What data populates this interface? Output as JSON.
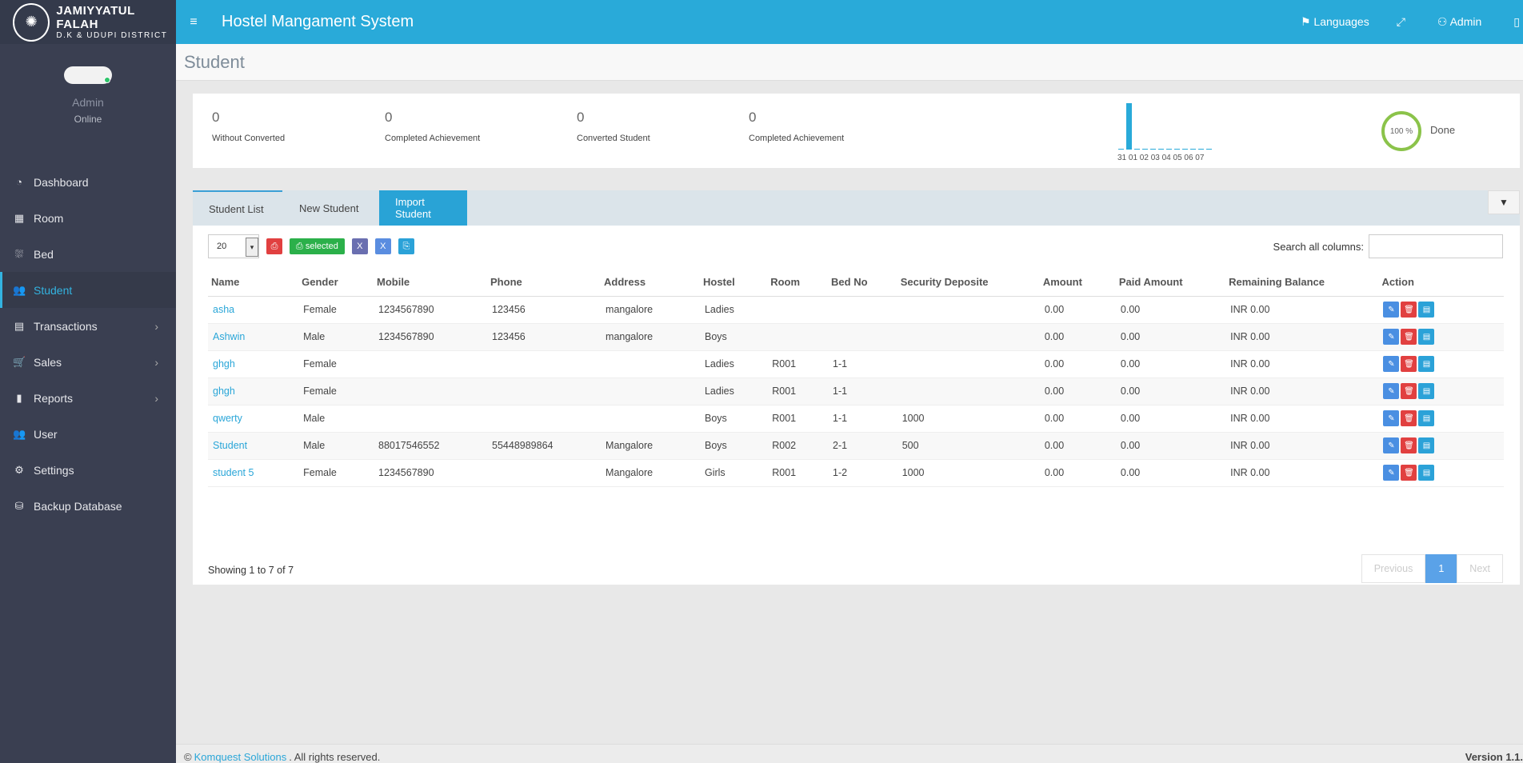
{
  "brand": {
    "line1": "JAMIYYATUL FALAH",
    "line2": "D.K & UDUPI DISTRICT"
  },
  "user": {
    "name": "Admin",
    "status": "Online"
  },
  "menu": [
    {
      "label": "Dashboard",
      "icon": "dashboard-icon",
      "glyph": "◔",
      "chevron": false
    },
    {
      "label": "Room",
      "icon": "room-icon",
      "glyph": "▦",
      "chevron": false
    },
    {
      "label": "Bed",
      "icon": "bed-icon",
      "glyph": "⛆",
      "chevron": false
    },
    {
      "label": "Student",
      "icon": "users-icon",
      "glyph": "👥",
      "chevron": false,
      "active": true
    },
    {
      "label": "Transactions",
      "icon": "book-icon",
      "glyph": "▤",
      "chevron": true
    },
    {
      "label": "Sales",
      "icon": "cart-icon",
      "glyph": "🛒",
      "chevron": true
    },
    {
      "label": "Reports",
      "icon": "bar-chart-icon",
      "glyph": "▮",
      "chevron": true
    },
    {
      "label": "User",
      "icon": "users-icon",
      "glyph": "👥",
      "chevron": false
    },
    {
      "label": "Settings",
      "icon": "gears-icon",
      "glyph": "⚙",
      "chevron": false
    },
    {
      "label": "Backup Database",
      "icon": "database-icon",
      "glyph": "⛁",
      "chevron": false
    }
  ],
  "header": {
    "title": "Hostel Mangament System",
    "languages": "Languages",
    "admin": "Admin"
  },
  "page": {
    "title": "Student"
  },
  "stats": [
    {
      "value": "0",
      "label": "Without Converted"
    },
    {
      "value": "0",
      "label": "Completed Achievement"
    },
    {
      "value": "0",
      "label": "Converted Student"
    },
    {
      "value": "0",
      "label": "Completed Achievement"
    }
  ],
  "sparkline": {
    "labels": "31 01 02 03 04 05 06 07",
    "values": [
      0,
      1,
      0,
      0,
      0,
      0,
      0,
      0,
      0,
      0,
      0,
      0
    ],
    "color": "#29aad9"
  },
  "progress": {
    "percent": 100,
    "label": "100 %",
    "status": "Done",
    "color": "#8bc34a"
  },
  "tabs": {
    "list": "Student List",
    "new": "New Student",
    "import": "Import Student"
  },
  "toolbar": {
    "page_size": "20",
    "selected": "selected"
  },
  "search": {
    "label": "Search all columns:",
    "placeholder": ""
  },
  "table": {
    "headers": [
      "Name",
      "Gender",
      "Mobile",
      "Phone",
      "Address",
      "Hostel",
      "Room",
      "Bed No",
      "Security Deposite",
      "Amount",
      "Paid Amount",
      "Remaining Balance",
      "Action"
    ],
    "rows": [
      [
        "asha",
        "Female",
        "1234567890",
        "123456",
        "mangalore",
        "Ladies",
        "",
        "",
        "",
        "0.00",
        "0.00",
        "INR 0.00"
      ],
      [
        "Ashwin",
        "Male",
        "1234567890",
        "123456",
        "mangalore",
        "Boys",
        "",
        "",
        "",
        "0.00",
        "0.00",
        "INR 0.00"
      ],
      [
        "ghgh",
        "Female",
        "",
        "",
        "",
        "Ladies",
        "R001",
        "1-1",
        "",
        "0.00",
        "0.00",
        "INR 0.00"
      ],
      [
        "ghgh",
        "Female",
        "",
        "",
        "",
        "Ladies",
        "R001",
        "1-1",
        "",
        "0.00",
        "0.00",
        "INR 0.00"
      ],
      [
        "qwerty",
        "Male",
        "",
        "",
        "",
        "Boys",
        "R001",
        "1-1",
        "1000",
        "0.00",
        "0.00",
        "INR 0.00"
      ],
      [
        "Student",
        "Male",
        "88017546552",
        "55448989864",
        "Mangalore",
        "Boys",
        "R002",
        "2-1",
        "500",
        "0.00",
        "0.00",
        "INR 0.00"
      ],
      [
        "student 5",
        "Female",
        "1234567890",
        "",
        "Mangalore",
        "Girls",
        "R001",
        "1-2",
        "1000",
        "0.00",
        "0.00",
        "INR 0.00"
      ]
    ]
  },
  "showing": "Showing 1 to 7 of 7",
  "pager": {
    "prev": "Previous",
    "current": "1",
    "next": "Next"
  },
  "footer": {
    "prefix": "©",
    "company": "Komquest Solutions",
    "suffix": ". All rights reserved.",
    "version": "Version 1.1."
  }
}
